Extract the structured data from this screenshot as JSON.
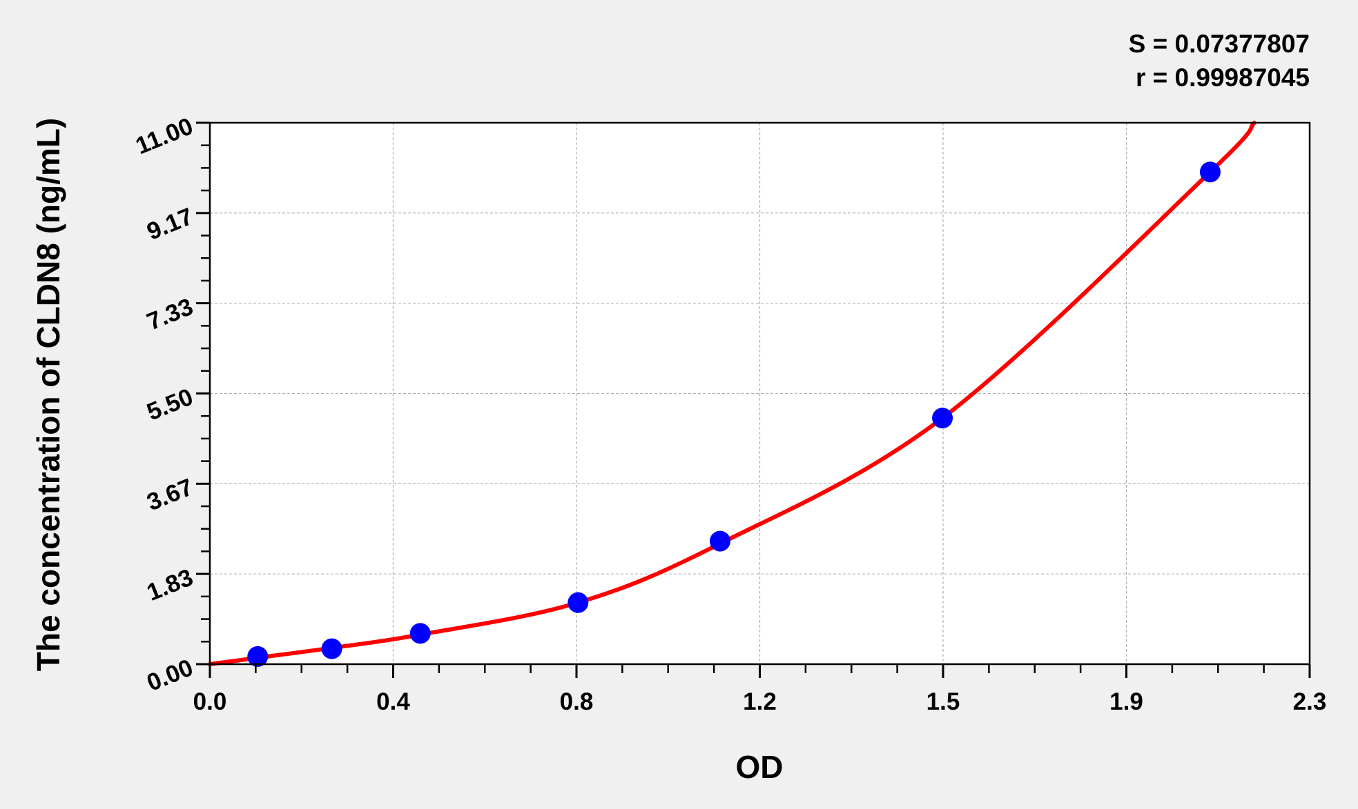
{
  "chart_data": {
    "type": "scatter",
    "title": "",
    "xlabel": "OD",
    "ylabel": "The concentration of CLDN8  (ng/mL)",
    "xlim": [
      0,
      2.3
    ],
    "ylim": [
      0,
      11
    ],
    "x_tick_labels": [
      "0.0",
      "0.4",
      "0.8",
      "1.2",
      "1.5",
      "1.9",
      "2.3"
    ],
    "y_tick_labels": [
      "0.00",
      "1.83",
      "3.67",
      "5.50",
      "7.33",
      "9.17",
      "11.00"
    ],
    "grid": true,
    "annotations": [
      "S = 0.07377807",
      "r = 0.99987045"
    ],
    "series": [
      {
        "kind": "points",
        "color": "#0000ff",
        "x": [
          0.1,
          0.255,
          0.44,
          0.77,
          1.067,
          1.532,
          2.092
        ],
        "y": [
          0.156,
          0.313,
          0.625,
          1.25,
          2.5,
          5.0,
          10.0
        ]
      },
      {
        "kind": "fitted-curve",
        "color": "#ff0000",
        "x": [
          0.0,
          0.1,
          0.255,
          0.44,
          0.77,
          1.067,
          1.532,
          2.092,
          2.184
        ],
        "y": [
          0.0,
          0.13,
          0.33,
          0.6,
          1.25,
          2.45,
          5.0,
          10.0,
          11.0
        ]
      }
    ],
    "colors": {
      "background": "#f0f0f0",
      "plot_background": "#ffffff",
      "grid": "#b0b0b0"
    }
  }
}
